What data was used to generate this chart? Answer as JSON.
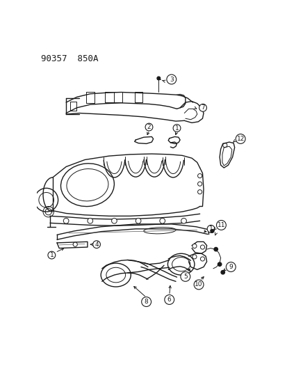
{
  "title": "90357  850A",
  "bg_color": "#ffffff",
  "line_color": "#1a1a1a",
  "fig_width": 4.14,
  "fig_height": 5.33,
  "dpi": 100
}
